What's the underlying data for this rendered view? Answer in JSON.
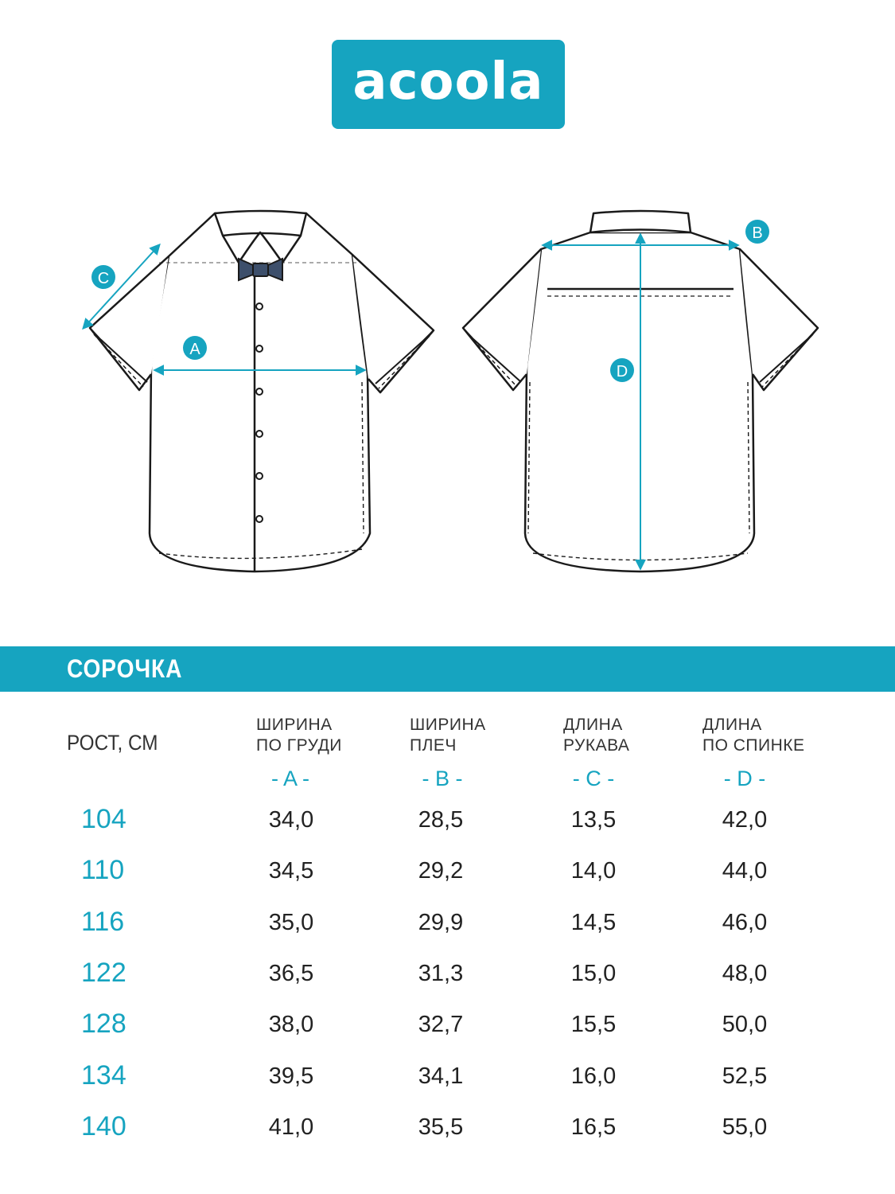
{
  "brand": {
    "logo_text": "acoola",
    "color": "#16a4c0"
  },
  "diagram": {
    "markers": {
      "a": "A",
      "b": "B",
      "c": "C",
      "d": "D"
    }
  },
  "product": {
    "title": "СОРОЧКА"
  },
  "table": {
    "height_header": "РОСТ, СМ",
    "columns": [
      {
        "line1": "ШИРИНА",
        "line2": "ПО ГРУДИ",
        "letter": "- A -"
      },
      {
        "line1": "ШИРИНА",
        "line2": "ПЛЕЧ",
        "letter": "- B -"
      },
      {
        "line1": "ДЛИНА",
        "line2": "РУКАВА",
        "letter": "- C -"
      },
      {
        "line1": "ДЛИНА",
        "line2": "ПО СПИНКЕ",
        "letter": "- D -"
      }
    ],
    "rows": [
      {
        "height": "104",
        "values": [
          "34,0",
          "28,5",
          "13,5",
          "42,0"
        ]
      },
      {
        "height": "110",
        "values": [
          "34,5",
          "29,2",
          "14,0",
          "44,0"
        ]
      },
      {
        "height": "116",
        "values": [
          "35,0",
          "29,9",
          "14,5",
          "46,0"
        ]
      },
      {
        "height": "122",
        "values": [
          "36,5",
          "31,3",
          "15,0",
          "48,0"
        ]
      },
      {
        "height": "128",
        "values": [
          "38,0",
          "32,7",
          "15,5",
          "50,0"
        ]
      },
      {
        "height": "134",
        "values": [
          "39,5",
          "34,1",
          "16,0",
          "52,5"
        ]
      },
      {
        "height": "140",
        "values": [
          "41,0",
          "35,5",
          "16,5",
          "55,0"
        ]
      }
    ]
  }
}
